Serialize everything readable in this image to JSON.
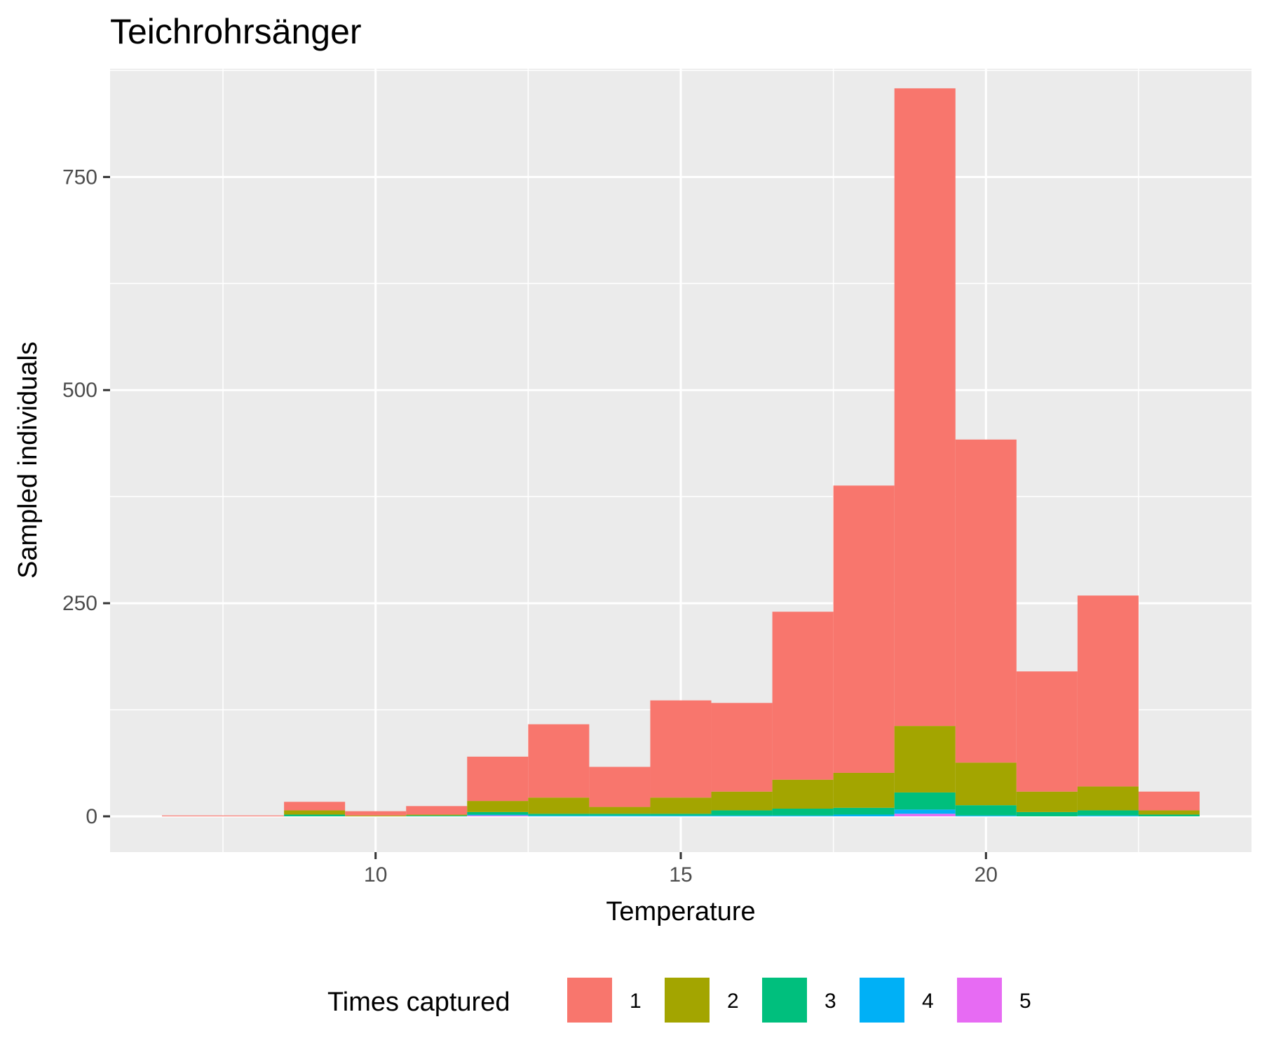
{
  "chart_data": {
    "type": "bar",
    "stacked": true,
    "title": "Teichrohrsänger",
    "xlabel": "Temperature",
    "ylabel": "Sampled individuals",
    "bin_width": 1,
    "bin_centers": [
      7,
      8,
      9,
      10,
      11,
      12,
      13,
      14,
      15,
      16,
      17,
      18,
      19,
      20,
      21,
      22,
      23
    ],
    "xlim": [
      5.65,
      24.35
    ],
    "ylim": [
      -42,
      877
    ],
    "x_ticks": [
      10,
      15,
      20
    ],
    "y_ticks": [
      0,
      250,
      500,
      750
    ],
    "grid": true,
    "legend": {
      "title": "Times captured",
      "position": "bottom"
    },
    "series": [
      {
        "name": "1",
        "color": "#F8766D",
        "values": [
          1,
          1,
          10,
          5,
          10,
          52,
          86,
          47,
          114,
          104,
          197,
          337,
          748,
          379,
          141,
          224,
          22
        ]
      },
      {
        "name": "2",
        "color": "#A3A500",
        "values": [
          0,
          0,
          5,
          1,
          1,
          13,
          19,
          8,
          19,
          22,
          34,
          41,
          78,
          50,
          24,
          28,
          5
        ]
      },
      {
        "name": "3",
        "color": "#00BF7D",
        "values": [
          0,
          0,
          2,
          0,
          1,
          3,
          2,
          2,
          2,
          6,
          8,
          8,
          20,
          12,
          5,
          6,
          2
        ]
      },
      {
        "name": "4",
        "color": "#00B0F6",
        "values": [
          0,
          0,
          0,
          0,
          0,
          1,
          1,
          1,
          1,
          1,
          1,
          2,
          5,
          1,
          0,
          1,
          0
        ]
      },
      {
        "name": "5",
        "color": "#E76BF3",
        "values": [
          0,
          0,
          0,
          0,
          0,
          1,
          0,
          0,
          0,
          0,
          0,
          0,
          3,
          0,
          0,
          0,
          0
        ]
      }
    ]
  }
}
